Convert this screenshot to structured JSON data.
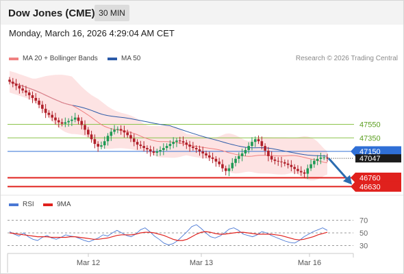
{
  "header": {
    "title": "Dow Jones (CME)",
    "interval": "30 MIN"
  },
  "datetime": "Monday, March 16, 2026 4:29:04 AM CET",
  "legend": {
    "bollinger": {
      "label": "MA 20 + Bollinger Bands",
      "color": "#f08080"
    },
    "ma50": {
      "label": "MA 50",
      "color": "#2b5aa8"
    },
    "research": "Research © 2026 Trading Central"
  },
  "rsi_legend": {
    "rsi": {
      "label": "RSI",
      "color": "#4a78d4"
    },
    "ma9": {
      "label": "9MA",
      "color": "#e0211d"
    }
  },
  "colors": {
    "up_candle": "#1f9a55",
    "down_candle": "#b0202a",
    "resistance": "#8bc34a",
    "pivot": "#2f6fd6",
    "support": "#e0211d",
    "band_fill": "#fde3e3"
  },
  "chart_data": [
    {
      "type": "candlestick",
      "title": "Dow Jones (CME)",
      "x_ticks": [
        "Mar 12",
        "Mar 13",
        "Mar 16"
      ],
      "levels": [
        {
          "value": 47550,
          "label": "47550",
          "kind": "resistance"
        },
        {
          "value": 47350,
          "label": "47350",
          "kind": "resistance"
        },
        {
          "value": 47150,
          "label": "47150",
          "kind": "pivot"
        },
        {
          "value": 46760,
          "label": "46760",
          "kind": "support"
        },
        {
          "value": 46630,
          "label": "46630",
          "kind": "support"
        }
      ],
      "last_price": {
        "value": 47047,
        "label": "47047"
      },
      "close_series": [
        48180,
        48150,
        48120,
        48080,
        48050,
        48020,
        47980,
        47940,
        47900,
        47840,
        47780,
        47720,
        47690,
        47650,
        47610,
        47580,
        47560,
        47580,
        47600,
        47620,
        47650,
        47600,
        47540,
        47470,
        47400,
        47330,
        47260,
        47220,
        47240,
        47300,
        47380,
        47440,
        47470,
        47480,
        47460,
        47430,
        47390,
        47340,
        47290,
        47250,
        47230,
        47200,
        47180,
        47150,
        47130,
        47150,
        47170,
        47200,
        47230,
        47260,
        47290,
        47310,
        47300,
        47280,
        47250,
        47220,
        47200,
        47180,
        47150,
        47120,
        47090,
        47060,
        47040,
        47000,
        46960,
        46900,
        46860,
        46900,
        46980,
        47040,
        47080,
        47120,
        47170,
        47230,
        47290,
        47330,
        47300,
        47230,
        47160,
        47080,
        47030,
        47010,
        47000,
        46990,
        46970,
        46950,
        46920,
        46890,
        46860,
        46840,
        46820,
        46900,
        46960,
        47010,
        47040,
        47060,
        47060,
        47047
      ],
      "projection": {
        "from": 47047,
        "to": 46700
      }
    },
    {
      "type": "line",
      "title": "RSI",
      "y_ticks": [
        70,
        50,
        30
      ],
      "ylim": [
        20,
        80
      ],
      "series": [
        {
          "name": "RSI",
          "values": [
            52,
            48,
            45,
            50,
            44,
            40,
            38,
            43,
            46,
            42,
            40,
            43,
            47,
            45,
            44,
            41,
            38,
            36,
            39,
            42,
            47,
            45,
            50,
            54,
            50,
            46,
            44,
            48,
            55,
            58,
            52,
            45,
            40,
            34,
            31,
            33,
            38,
            45,
            52,
            60,
            63,
            57,
            50,
            44,
            42,
            45,
            50,
            56,
            58,
            54,
            48,
            46,
            44,
            47,
            52,
            50,
            46,
            43,
            40,
            37,
            35,
            34,
            38,
            44,
            48,
            52,
            55,
            58,
            54
          ]
        },
        {
          "name": "9MA",
          "values": [
            50,
            49,
            48,
            47,
            46,
            45,
            44,
            44,
            44,
            43,
            43,
            43,
            43,
            44,
            44,
            43,
            42,
            41,
            40,
            40,
            41,
            42,
            44,
            46,
            47,
            47,
            47,
            48,
            50,
            51,
            51,
            50,
            48,
            46,
            43,
            40,
            38,
            38,
            40,
            44,
            48,
            51,
            52,
            51,
            49,
            48,
            48,
            49,
            50,
            51,
            51,
            50,
            49,
            48,
            48,
            48,
            48,
            47,
            46,
            44,
            42,
            40,
            39,
            40,
            42,
            44,
            47,
            49,
            51
          ]
        }
      ]
    }
  ]
}
